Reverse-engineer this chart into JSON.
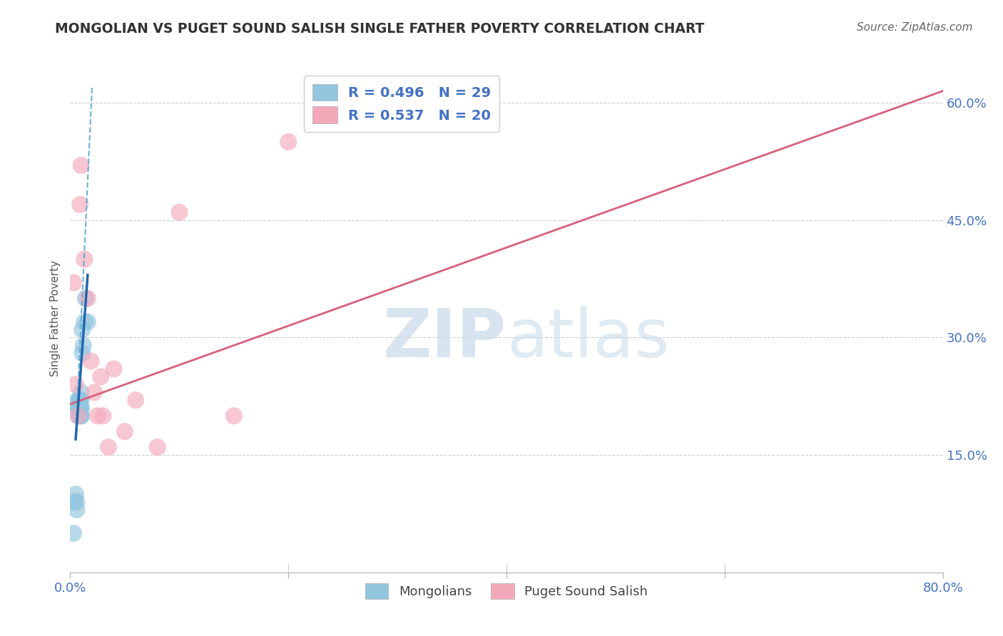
{
  "title": "MONGOLIAN VS PUGET SOUND SALISH SINGLE FATHER POVERTY CORRELATION CHART",
  "source": "Source: ZipAtlas.com",
  "ylabel": "Single Father Poverty",
  "xlim": [
    0.0,
    0.8
  ],
  "ylim": [
    0.0,
    0.65
  ],
  "xtick_positions": [
    0.0,
    0.2,
    0.4,
    0.6,
    0.8
  ],
  "xticklabels": [
    "0.0%",
    "",
    "",
    "",
    "80.0%"
  ],
  "ytick_positions": [
    0.15,
    0.3,
    0.45,
    0.6
  ],
  "ytick_labels": [
    "15.0%",
    "30.0%",
    "45.0%",
    "60.0%"
  ],
  "legend_r1": "R = 0.496",
  "legend_n1": "N = 29",
  "legend_r2": "R = 0.537",
  "legend_n2": "N = 20",
  "blue_color": "#92c5de",
  "pink_color": "#f4a9bb",
  "blue_line_solid_color": "#2166ac",
  "blue_line_dash_color": "#6baed6",
  "pink_line_color": "#d6607a",
  "watermark_zip": "ZIP",
  "watermark_atlas": "atlas",
  "mongolian_x": [
    0.003,
    0.004,
    0.005,
    0.006,
    0.006,
    0.007,
    0.007,
    0.007,
    0.008,
    0.008,
    0.008,
    0.008,
    0.009,
    0.009,
    0.009,
    0.009,
    0.009,
    0.01,
    0.01,
    0.01,
    0.01,
    0.01,
    0.01,
    0.011,
    0.011,
    0.012,
    0.013,
    0.014,
    0.016
  ],
  "mongolian_y": [
    0.05,
    0.09,
    0.1,
    0.08,
    0.09,
    0.21,
    0.22,
    0.21,
    0.2,
    0.22,
    0.21,
    0.2,
    0.21,
    0.21,
    0.22,
    0.22,
    0.2,
    0.2,
    0.21,
    0.21,
    0.22,
    0.23,
    0.2,
    0.28,
    0.31,
    0.29,
    0.32,
    0.35,
    0.32
  ],
  "salish_x": [
    0.003,
    0.005,
    0.007,
    0.009,
    0.01,
    0.013,
    0.016,
    0.019,
    0.022,
    0.025,
    0.028,
    0.03,
    0.035,
    0.04,
    0.05,
    0.06,
    0.08,
    0.1,
    0.15,
    0.2
  ],
  "salish_y": [
    0.37,
    0.24,
    0.2,
    0.47,
    0.52,
    0.4,
    0.35,
    0.27,
    0.23,
    0.2,
    0.25,
    0.2,
    0.16,
    0.26,
    0.18,
    0.22,
    0.16,
    0.46,
    0.2,
    0.55
  ],
  "blue_solid_trend_x": [
    0.005,
    0.016
  ],
  "blue_solid_trend_y": [
    0.17,
    0.38
  ],
  "blue_dash_trend_x": [
    0.005,
    0.02
  ],
  "blue_dash_trend_y": [
    0.17,
    0.62
  ],
  "pink_trend_x": [
    0.0,
    0.8
  ],
  "pink_trend_y": [
    0.215,
    0.615
  ],
  "grid_color": "#cccccc",
  "background_color": "#ffffff",
  "title_color": "#333333",
  "axis_label_color": "#555555",
  "ytick_label_color": "#4472c4",
  "xtick_label_color": "#4472c4",
  "legend_text_color": "#4472c4",
  "source_color": "#666666"
}
